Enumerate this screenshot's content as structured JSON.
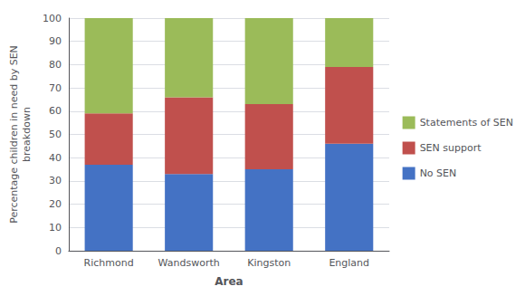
{
  "chart_data": {
    "type": "bar",
    "stacked": true,
    "xlabel": "Area",
    "ylabel": "Percentage children in need by SEN\nbreakdown",
    "categories": [
      "Richmond",
      "Wandsworth",
      "Kingston",
      "England"
    ],
    "series": [
      {
        "name": "No SEN",
        "color": "#4472C4",
        "values": [
          37,
          33,
          35,
          46
        ]
      },
      {
        "name": "SEN support",
        "color": "#C0504D",
        "values": [
          22,
          33,
          28,
          33
        ]
      },
      {
        "name": "Statements of SEN",
        "color": "#9BBB59",
        "values": [
          41,
          34,
          37,
          21
        ]
      }
    ],
    "ylim": [
      0,
      100
    ],
    "yticks": [
      0,
      10,
      20,
      30,
      40,
      50,
      60,
      70,
      80,
      90,
      100
    ],
    "grid": true,
    "legend": "right"
  }
}
